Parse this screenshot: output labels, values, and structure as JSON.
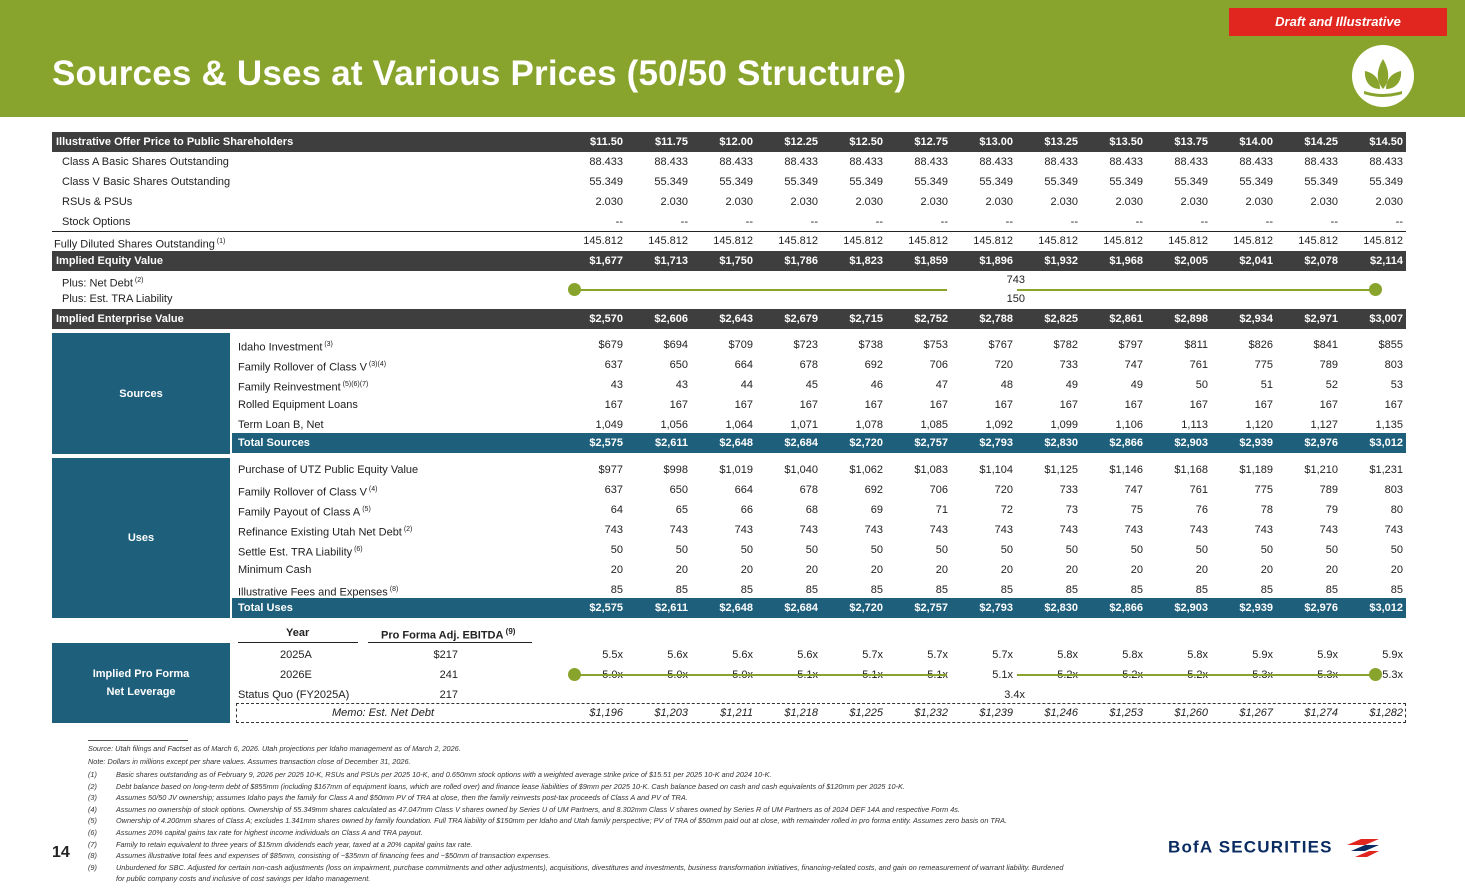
{
  "header": {
    "title": "Sources & Uses at Various Prices (50/50 Structure)",
    "draft_label": "Draft and Illustrative",
    "logo_icon": "leaf-logo-icon"
  },
  "prices": [
    "$11.50",
    "$11.75",
    "$12.00",
    "$12.25",
    "$12.50",
    "$12.75",
    "$13.00",
    "$13.25",
    "$13.50",
    "$13.75",
    "$14.00",
    "$14.25",
    "$14.50"
  ],
  "header_row_label": "Illustrative Offer Price to Public Shareholders",
  "shares": [
    {
      "label": "Class A Basic Shares Outstanding",
      "sup": "",
      "values": [
        "88.433",
        "88.433",
        "88.433",
        "88.433",
        "88.433",
        "88.433",
        "88.433",
        "88.433",
        "88.433",
        "88.433",
        "88.433",
        "88.433",
        "88.433"
      ]
    },
    {
      "label": "Class V Basic Shares Outstanding",
      "sup": "",
      "values": [
        "55.349",
        "55.349",
        "55.349",
        "55.349",
        "55.349",
        "55.349",
        "55.349",
        "55.349",
        "55.349",
        "55.349",
        "55.349",
        "55.349",
        "55.349"
      ]
    },
    {
      "label": "RSUs & PSUs",
      "sup": "",
      "values": [
        "2.030",
        "2.030",
        "2.030",
        "2.030",
        "2.030",
        "2.030",
        "2.030",
        "2.030",
        "2.030",
        "2.030",
        "2.030",
        "2.030",
        "2.030"
      ]
    },
    {
      "label": "Stock Options",
      "sup": "",
      "values": [
        "--",
        "--",
        "--",
        "--",
        "--",
        "--",
        "--",
        "--",
        "--",
        "--",
        "--",
        "--",
        "--"
      ]
    }
  ],
  "fully_diluted": {
    "label": "Fully Diluted Shares Outstanding",
    "sup": "(1)",
    "values": [
      "145.812",
      "145.812",
      "145.812",
      "145.812",
      "145.812",
      "145.812",
      "145.812",
      "145.812",
      "145.812",
      "145.812",
      "145.812",
      "145.812",
      "145.812"
    ]
  },
  "implied_equity": {
    "label": "Implied Equity Value",
    "values": [
      "$1,677",
      "$1,713",
      "$1,750",
      "$1,786",
      "$1,823",
      "$1,859",
      "$1,896",
      "$1,932",
      "$1,968",
      "$2,005",
      "$2,041",
      "$2,078",
      "$2,114"
    ]
  },
  "plus_rows": [
    {
      "label": "Plus: Net Debt",
      "sup": "(2)",
      "value": "743"
    },
    {
      "label": "Plus: Est. TRA Liability",
      "sup": "",
      "value": "150"
    }
  ],
  "implied_ev": {
    "label": "Implied Enterprise Value",
    "values": [
      "$2,570",
      "$2,606",
      "$2,643",
      "$2,679",
      "$2,715",
      "$2,752",
      "$2,788",
      "$2,825",
      "$2,861",
      "$2,898",
      "$2,934",
      "$2,971",
      "$3,007"
    ]
  },
  "sources": {
    "section_label": "Sources",
    "rows": [
      {
        "label": "Idaho Investment",
        "sup": "(3)",
        "values": [
          "$679",
          "$694",
          "$709",
          "$723",
          "$738",
          "$753",
          "$767",
          "$782",
          "$797",
          "$811",
          "$826",
          "$841",
          "$855"
        ]
      },
      {
        "label": "Family Rollover of Class V",
        "sup": "(3)(4)",
        "values": [
          "637",
          "650",
          "664",
          "678",
          "692",
          "706",
          "720",
          "733",
          "747",
          "761",
          "775",
          "789",
          "803"
        ]
      },
      {
        "label": "Family Reinvestment",
        "sup": "(5)(6)(7)",
        "values": [
          "43",
          "43",
          "44",
          "45",
          "46",
          "47",
          "48",
          "49",
          "49",
          "50",
          "51",
          "52",
          "53"
        ]
      },
      {
        "label": "Rolled Equipment Loans",
        "sup": "",
        "values": [
          "167",
          "167",
          "167",
          "167",
          "167",
          "167",
          "167",
          "167",
          "167",
          "167",
          "167",
          "167",
          "167"
        ]
      },
      {
        "label": "Term Loan B, Net",
        "sup": "",
        "values": [
          "1,049",
          "1,056",
          "1,064",
          "1,071",
          "1,078",
          "1,085",
          "1,092",
          "1,099",
          "1,106",
          "1,113",
          "1,120",
          "1,127",
          "1,135"
        ]
      }
    ],
    "total": {
      "label": "Total Sources",
      "values": [
        "$2,575",
        "$2,611",
        "$2,648",
        "$2,684",
        "$2,720",
        "$2,757",
        "$2,793",
        "$2,830",
        "$2,866",
        "$2,903",
        "$2,939",
        "$2,976",
        "$3,012"
      ]
    }
  },
  "uses": {
    "section_label": "Uses",
    "rows": [
      {
        "label": "Purchase of UTZ Public Equity Value",
        "sup": "",
        "values": [
          "$977",
          "$998",
          "$1,019",
          "$1,040",
          "$1,062",
          "$1,083",
          "$1,104",
          "$1,125",
          "$1,146",
          "$1,168",
          "$1,189",
          "$1,210",
          "$1,231"
        ]
      },
      {
        "label": "Family Rollover of Class V",
        "sup": "(4)",
        "values": [
          "637",
          "650",
          "664",
          "678",
          "692",
          "706",
          "720",
          "733",
          "747",
          "761",
          "775",
          "789",
          "803"
        ]
      },
      {
        "label": "Family Payout of Class A",
        "sup": "(5)",
        "values": [
          "64",
          "65",
          "66",
          "68",
          "69",
          "71",
          "72",
          "73",
          "75",
          "76",
          "78",
          "79",
          "80"
        ]
      },
      {
        "label": "Refinance Existing Utah Net Debt",
        "sup": "(2)",
        "values": [
          "743",
          "743",
          "743",
          "743",
          "743",
          "743",
          "743",
          "743",
          "743",
          "743",
          "743",
          "743",
          "743"
        ]
      },
      {
        "label": "Settle Est. TRA Liability",
        "sup": "(6)",
        "values": [
          "50",
          "50",
          "50",
          "50",
          "50",
          "50",
          "50",
          "50",
          "50",
          "50",
          "50",
          "50",
          "50"
        ]
      },
      {
        "label": "Minimum Cash",
        "sup": "",
        "values": [
          "20",
          "20",
          "20",
          "20",
          "20",
          "20",
          "20",
          "20",
          "20",
          "20",
          "20",
          "20",
          "20"
        ]
      },
      {
        "label": "Illustrative Fees and Expenses",
        "sup": "(8)",
        "values": [
          "85",
          "85",
          "85",
          "85",
          "85",
          "85",
          "85",
          "85",
          "85",
          "85",
          "85",
          "85",
          "85"
        ]
      }
    ],
    "total": {
      "label": "Total Uses",
      "values": [
        "$2,575",
        "$2,611",
        "$2,648",
        "$2,684",
        "$2,720",
        "$2,757",
        "$2,793",
        "$2,830",
        "$2,866",
        "$2,903",
        "$2,939",
        "$2,976",
        "$3,012"
      ]
    }
  },
  "leverage": {
    "section_label_1": "Implied Pro Forma",
    "section_label_2": "Net Leverage",
    "year_header": "Year",
    "ebitda_header": "Pro Forma Adj. EBITDA",
    "ebitda_sup": "(9)",
    "rows": [
      {
        "year": "2025A",
        "ebitda": "$217",
        "values": [
          "5.5x",
          "5.6x",
          "5.6x",
          "5.6x",
          "5.7x",
          "5.7x",
          "5.7x",
          "5.8x",
          "5.8x",
          "5.8x",
          "5.9x",
          "5.9x",
          "5.9x"
        ]
      },
      {
        "year": "2026E",
        "ebitda": "241",
        "values": [
          "5.0x",
          "5.0x",
          "5.0x",
          "5.1x",
          "5.1x",
          "5.1x",
          "5.1x",
          "5.2x",
          "5.2x",
          "5.2x",
          "5.3x",
          "5.3x",
          "5.3x"
        ]
      }
    ],
    "status_quo": {
      "year": "Status Quo (FY2025A)",
      "ebitda": "217",
      "value": "3.4x"
    },
    "memo": {
      "label": "Memo: Est. Net Debt",
      "values": [
        "$1,196",
        "$1,203",
        "$1,211",
        "$1,218",
        "$1,225",
        "$1,232",
        "$1,239",
        "$1,246",
        "$1,253",
        "$1,260",
        "$1,267",
        "$1,274",
        "$1,282"
      ]
    }
  },
  "footnotes": {
    "source": "Source: Utah filings and Factset as of March 6, 2026. Utah projections per Idaho management as of March 2, 2026.",
    "note": "Note: Dollars in millions except per share values. Assumes transaction close of December 31, 2026.",
    "items": [
      {
        "n": "(1)",
        "t": "Basic shares outstanding as of February 9, 2026 per 2025 10-K, RSUs and PSUs per 2025 10-K, and 0.650mm stock options with a weighted average strike price of $15.51 per 2025 10-K and 2024 10-K."
      },
      {
        "n": "(2)",
        "t": "Debt balance based on long-term debt of $855mm (including $167mm of equipment loans, which are rolled over) and finance lease liabilities of $9mm per 2025 10-K. Cash balance based on cash and cash equivalents of $120mm per 2025 10-K."
      },
      {
        "n": "(3)",
        "t": "Assumes 50/50 JV ownership; assumes Idaho pays the family for Class A and $50mm PV of TRA at close, then the family reinvests post-tax proceeds of Class A and PV of TRA."
      },
      {
        "n": "(4)",
        "t": "Assumes no ownership of stock options. Ownership of 55.349mm shares calculated as 47.047mm Class V shares owned by Series U of UM Partners, and 8.302mm Class V shares owned by Series R of UM Partners as of 2024 DEF 14A and respective Form 4s."
      },
      {
        "n": "(5)",
        "t": "Ownership of 4.200mm shares of Class A; excludes 1.341mm shares owned by family foundation. Full TRA liability of $150mm per Idaho and Utah family perspective; PV of TRA of $50mm paid out at close, with remainder rolled in pro forma entity. Assumes zero basis on TRA."
      },
      {
        "n": "(6)",
        "t": "Assumes 20% capital gains tax rate for highest income individuals on Class A and TRA payout."
      },
      {
        "n": "(7)",
        "t": "Family to retain equivalent to three years of $15mm dividends each year, taxed at a 20% capital gains tax rate."
      },
      {
        "n": "(8)",
        "t": "Assumes illustrative total fees and expenses of $85mm, consisting of ~$35mm of financing fees and ~$50mm of transaction expenses."
      },
      {
        "n": "(9)",
        "t": "Unburdened for SBC. Adjusted for certain non-cash adjustments (loss on impairment, purchase commitments and other adjustments), acquisitions, divestitures and investments, business transformation initiatives, financing-related costs, and gain on remeasurement of warrant liability. Burdened"
      },
      {
        "n": "",
        "t": "for public company costs and inclusive of cost savings per Idaho management."
      }
    ]
  },
  "footer": {
    "page_number": "14",
    "brand": "BofA SECURITIES",
    "brand_icon": "bofa-flag-icon"
  }
}
